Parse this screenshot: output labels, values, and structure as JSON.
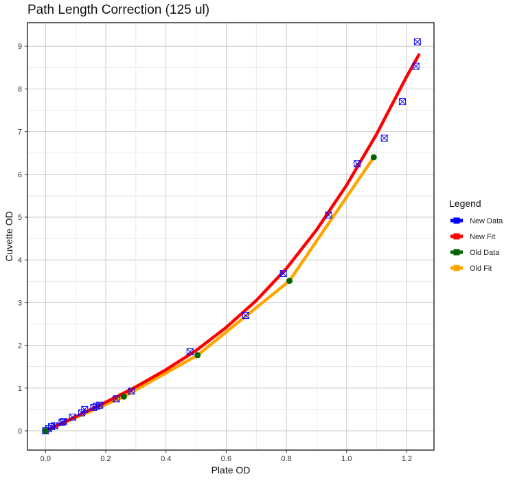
{
  "chart_data": {
    "type": "scatter",
    "title": "Path Length Correction (125 ul)",
    "xlabel": "Plate OD",
    "ylabel": "Cuvette OD",
    "xlim": [
      -0.06,
      1.29
    ],
    "ylim": [
      -0.45,
      9.55
    ],
    "x_ticks": [
      0.0,
      0.2,
      0.4,
      0.6,
      0.8,
      1.0,
      1.2
    ],
    "x_tick_labels": [
      "0.0",
      "0.2",
      "0.4",
      "0.6",
      "0.8",
      "1.0",
      "1.2"
    ],
    "y_ticks": [
      0,
      1,
      2,
      3,
      4,
      5,
      6,
      7,
      8,
      9
    ],
    "y_tick_labels": [
      "0",
      "1",
      "2",
      "3",
      "4",
      "5",
      "6",
      "7",
      "8",
      "9"
    ],
    "grid": true,
    "legend": {
      "title": "Legend",
      "placement": "right",
      "entries": [
        {
          "label": "New Data",
          "color": "#0000ff"
        },
        {
          "label": "New Fit",
          "color": "#ff0000"
        },
        {
          "label": "Old Data",
          "color": "#006400"
        },
        {
          "label": "Old Fit",
          "color": "#ffa500"
        }
      ]
    },
    "series": [
      {
        "name": "New Data",
        "kind": "points",
        "marker": "boxed-x",
        "color": "#0000ff",
        "x": [
          0.0,
          0.01,
          0.02,
          0.03,
          0.055,
          0.06,
          0.09,
          0.12,
          0.13,
          0.16,
          0.17,
          0.18,
          0.235,
          0.285,
          0.48,
          0.665,
          0.79,
          0.94,
          1.035,
          1.125,
          1.185,
          1.23,
          1.235
        ],
        "y": [
          0.0,
          0.05,
          0.1,
          0.12,
          0.2,
          0.22,
          0.32,
          0.42,
          0.5,
          0.55,
          0.58,
          0.6,
          0.75,
          0.93,
          1.85,
          2.7,
          3.68,
          5.05,
          6.25,
          6.85,
          7.7,
          8.53,
          9.1
        ]
      },
      {
        "name": "New Fit",
        "kind": "line",
        "color": "#ff0000",
        "x": [
          0.0,
          0.1,
          0.2,
          0.3,
          0.4,
          0.5,
          0.6,
          0.7,
          0.8,
          0.9,
          1.0,
          1.1,
          1.2,
          1.24
        ],
        "y": [
          0.0,
          0.33,
          0.67,
          1.03,
          1.43,
          1.88,
          2.42,
          3.05,
          3.8,
          4.7,
          5.75,
          6.95,
          8.3,
          8.8
        ]
      },
      {
        "name": "Old Data",
        "kind": "points",
        "marker": "circle",
        "color": "#006400",
        "x": [
          0.0,
          0.26,
          0.505,
          0.81,
          1.09
        ],
        "y": [
          0.0,
          0.8,
          1.77,
          3.51,
          6.4
        ]
      },
      {
        "name": "Old Fit",
        "kind": "line",
        "color": "#ffa500",
        "x": [
          0.0,
          0.26,
          0.505,
          0.81,
          1.09
        ],
        "y": [
          0.0,
          0.8,
          1.77,
          3.51,
          6.4
        ]
      }
    ]
  }
}
